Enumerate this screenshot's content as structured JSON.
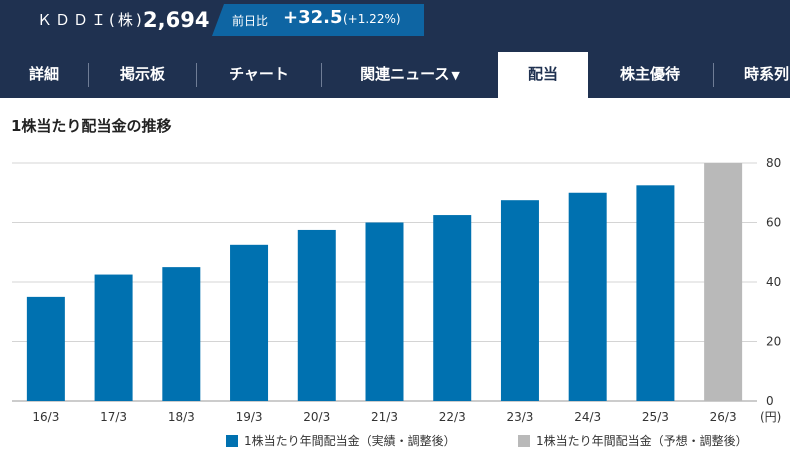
{
  "header": {
    "company": "ＫＤＤＩ(株)",
    "price": "2,694",
    "change_label": "前日比",
    "change_value": "+32.5",
    "change_pct": "(+1.22%)"
  },
  "nav": {
    "tabs": [
      {
        "label": "詳細",
        "active": false
      },
      {
        "label": "掲示板",
        "active": false
      },
      {
        "label": "チャート",
        "active": false
      },
      {
        "label": "関連ニュース",
        "active": false
      },
      {
        "label": "配当",
        "active": true
      },
      {
        "label": "株主優待",
        "active": false
      },
      {
        "label": "時系列",
        "active": false
      }
    ],
    "dropdown_icon": "triangle-down-icon"
  },
  "section": {
    "title": "1株当たり配当金の推移"
  },
  "chart_data": {
    "type": "bar",
    "categories": [
      "16/3",
      "17/3",
      "18/3",
      "19/3",
      "20/3",
      "21/3",
      "22/3",
      "23/3",
      "24/3",
      "25/3",
      "26/3"
    ],
    "series": [
      {
        "name": "1株当たり年間配当金（実績・調整後）",
        "color": "#0071b0",
        "values": [
          35,
          42.5,
          45,
          52.5,
          57.5,
          60,
          62.5,
          67.5,
          70,
          72.5,
          null
        ]
      },
      {
        "name": "1株当たり年間配当金（予想・調整後）",
        "color": "#b9b9b9",
        "values": [
          null,
          null,
          null,
          null,
          null,
          null,
          null,
          null,
          null,
          null,
          80
        ]
      }
    ],
    "ylim": [
      0,
      80
    ],
    "yticks": [
      "0",
      "20",
      "40",
      "60",
      "80"
    ],
    "yunit": "(円)",
    "grid": true,
    "legend_position": "bottom"
  }
}
